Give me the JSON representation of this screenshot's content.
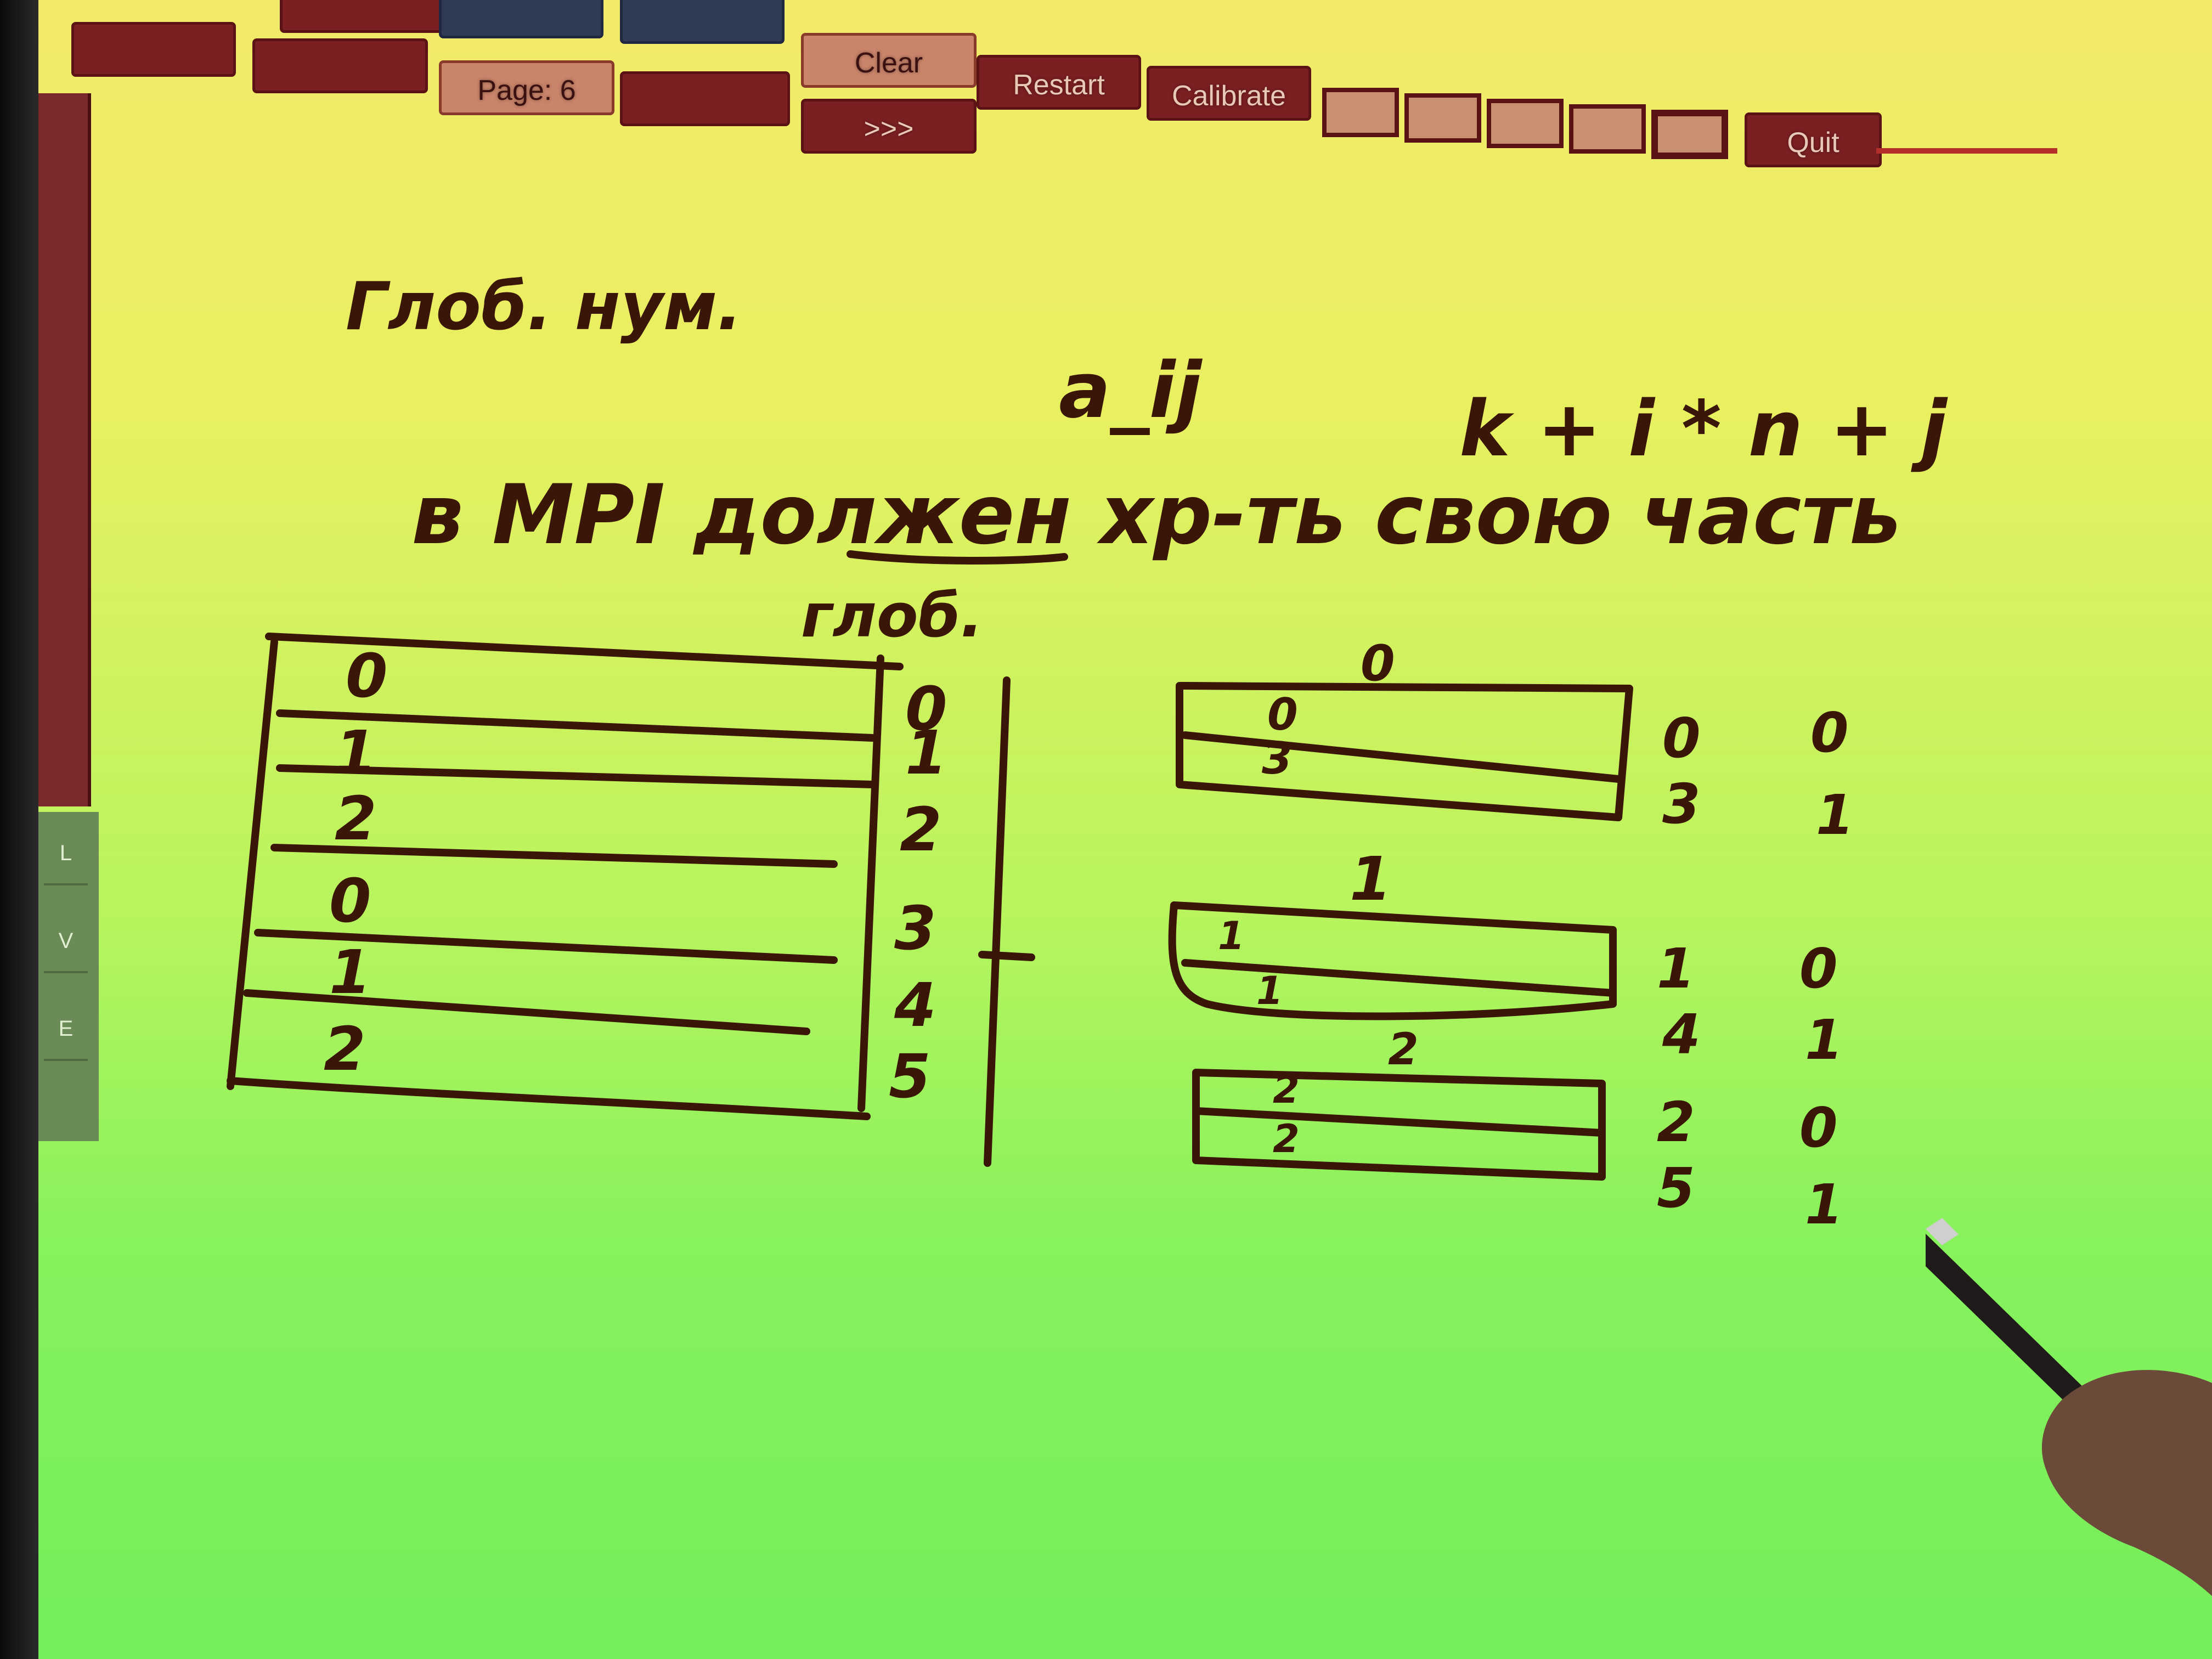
{
  "toolbar": {
    "clear_label": "Clear",
    "page_label": "Page: 6",
    "restart_label": "Restart",
    "calibrate_label": "Calibrate",
    "quit_label": "Quit",
    "next_label": ">>>",
    "accent_color": "#7a1f22"
  },
  "left_tools": [
    "L",
    "V",
    "E"
  ],
  "board": {
    "ink_color": "#3a1608",
    "line_1": "Глоб. нум.",
    "formula_left": "a_ij",
    "formula_right": "k + i * n + j",
    "line_2": "в MPI должен хр-ть свою часть",
    "global_label": "глоб.",
    "global_table_local_indices": [
      "0",
      "1",
      "2",
      "0",
      "1",
      "2"
    ],
    "global_table_row_numbers": [
      "0",
      "1",
      "2",
      "3",
      "4",
      "5"
    ],
    "processes": [
      {
        "id": "0",
        "inner_labels": [
          "0",
          "3"
        ],
        "global_rows": [
          "0",
          "3"
        ],
        "local_rows": [
          "0",
          "1"
        ]
      },
      {
        "id": "1",
        "inner_labels": [
          "1",
          "1"
        ],
        "global_rows": [
          "1",
          "4"
        ],
        "local_rows": [
          "0",
          "1"
        ]
      },
      {
        "id": "2",
        "inner_labels": [
          "2",
          "2"
        ],
        "global_rows": [
          "2",
          "5"
        ],
        "local_rows": [
          "0",
          "1"
        ]
      }
    ]
  }
}
